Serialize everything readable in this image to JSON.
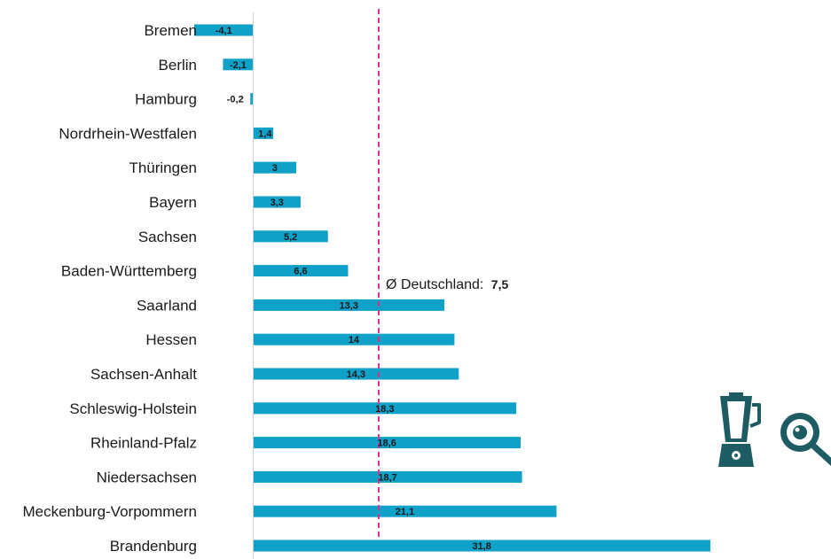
{
  "chart_data": {
    "type": "bar",
    "orientation": "horizontal",
    "categories": [
      "Bremen",
      "Berlin",
      "Hamburg",
      "Nordrhein-Westfalen",
      "Thüringen",
      "Bayern",
      "Sachsen",
      "Baden-Württemberg",
      "Saarland",
      "Hessen",
      "Sachsen-Anhalt",
      "Schleswig-Holstein",
      "Rheinland-Pfalz",
      "Niedersachsen",
      "Meckenburg-Vorpommern",
      "Brandenburg"
    ],
    "values": [
      -4.1,
      -2.1,
      -0.2,
      1.4,
      3,
      3.3,
      5.2,
      6.6,
      13.3,
      14,
      14.3,
      18.3,
      18.6,
      18.7,
      21.1,
      31.8
    ],
    "value_labels": [
      "-4,1",
      "-2,1",
      "-0,2",
      "1,4",
      "3",
      "3,3",
      "5,2",
      "6,6",
      "13,3",
      "14",
      "14,3",
      "18,3",
      "18,6",
      "18,7",
      "21,1",
      "31,8"
    ],
    "xlim": [
      -4.1,
      31.8
    ],
    "bar_color": "#0fa1c8",
    "reference_line": {
      "value": 7.5,
      "label": "Ø Deutschland:",
      "value_label": "7,5",
      "color": "#d6338c",
      "style": "dashed"
    },
    "grid": false,
    "legend": "none"
  },
  "icons": {
    "color": "#1e5c64",
    "items": [
      "blender-icon",
      "frying-pan-egg-icon"
    ]
  }
}
